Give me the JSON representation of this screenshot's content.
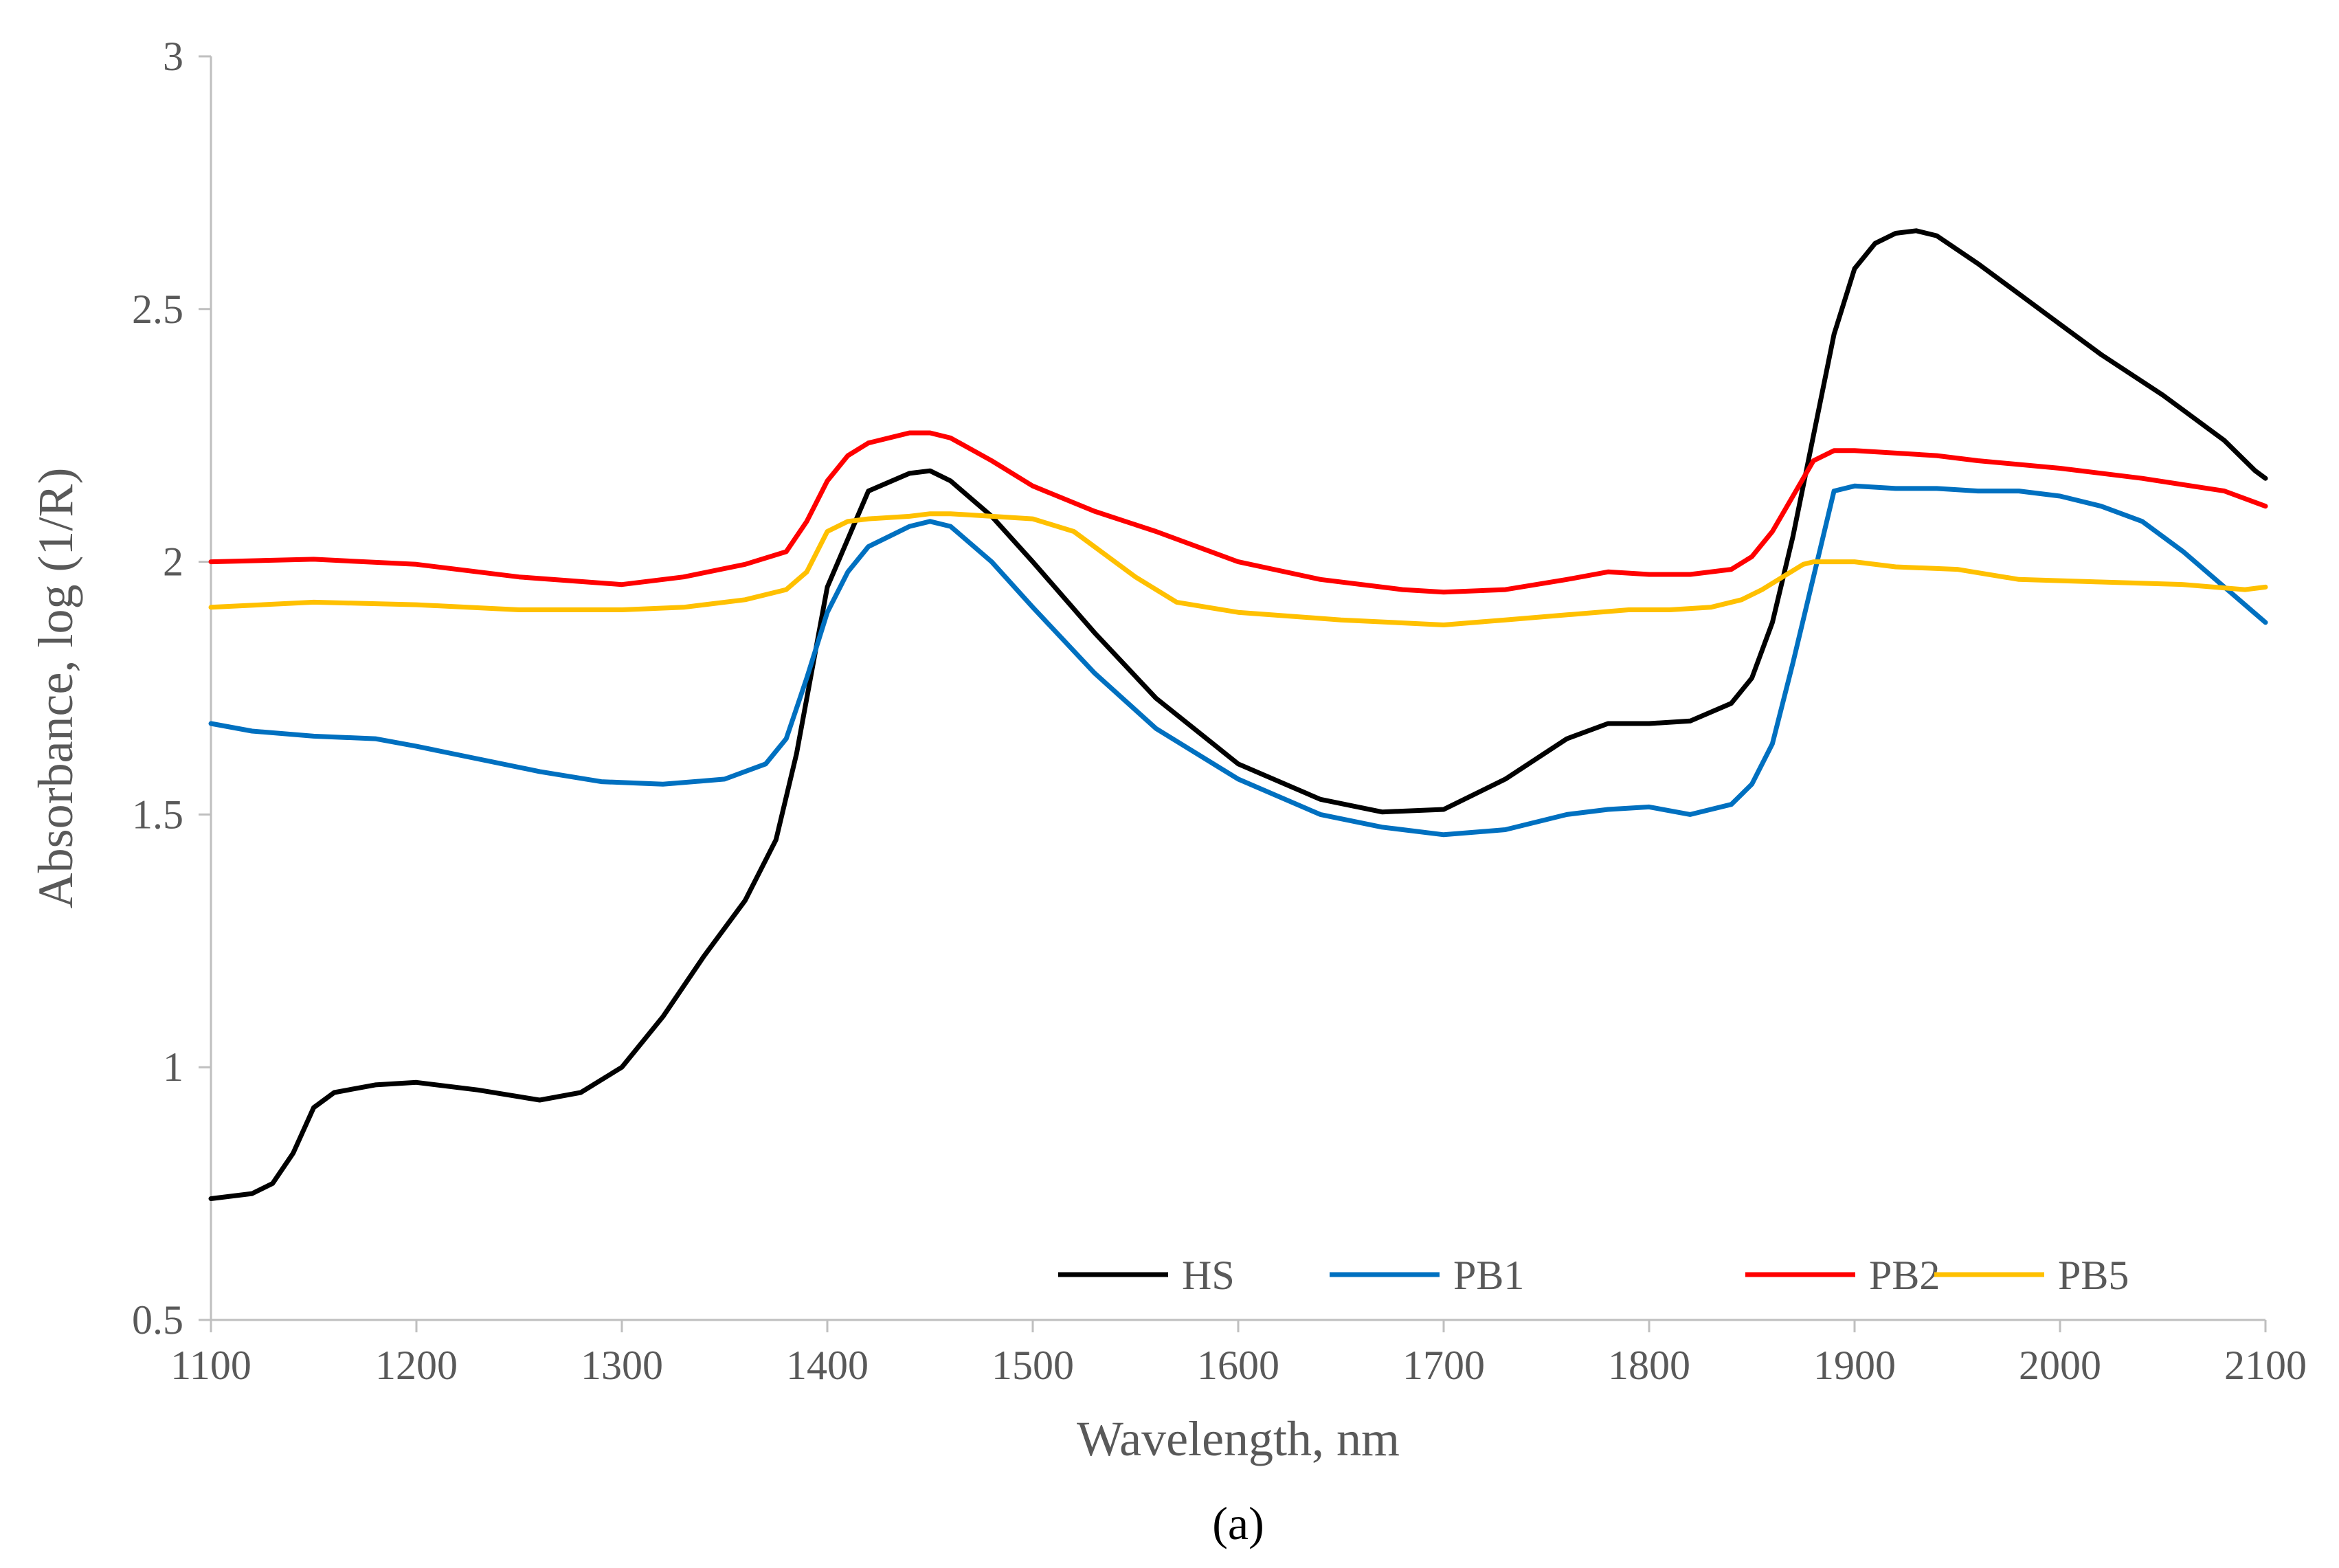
{
  "chart_data": {
    "type": "line",
    "xlabel": "Wavelength, nm",
    "ylabel": "Absorbance, log (1/R)",
    "caption": "(a)",
    "xlim": [
      1100,
      2100
    ],
    "ylim": [
      0.5,
      3
    ],
    "xticks": [
      1100,
      1200,
      1300,
      1400,
      1500,
      1600,
      1700,
      1800,
      1900,
      2000,
      2100
    ],
    "yticks": [
      0.5,
      1,
      1.5,
      2,
      2.5,
      3
    ],
    "ytick_labels": [
      "0.5",
      "1",
      "1.5",
      "2",
      "2.5",
      "3"
    ],
    "grid": false,
    "legend_position": "bottom-right",
    "series": [
      {
        "name": "HS",
        "color": "#000000",
        "x": [
          1100,
          1120,
          1130,
          1140,
          1150,
          1160,
          1180,
          1200,
          1230,
          1260,
          1280,
          1300,
          1320,
          1340,
          1360,
          1375,
          1385,
          1400,
          1420,
          1440,
          1450,
          1460,
          1480,
          1500,
          1530,
          1560,
          1600,
          1640,
          1670,
          1700,
          1730,
          1760,
          1780,
          1800,
          1820,
          1840,
          1850,
          1860,
          1870,
          1880,
          1890,
          1900,
          1910,
          1920,
          1930,
          1940,
          1960,
          1980,
          2000,
          2020,
          2050,
          2080,
          2095,
          2100
        ],
        "y": [
          0.74,
          0.75,
          0.77,
          0.83,
          0.92,
          0.95,
          0.965,
          0.97,
          0.955,
          0.935,
          0.95,
          1.0,
          1.1,
          1.22,
          1.33,
          1.45,
          1.62,
          1.95,
          2.14,
          2.175,
          2.18,
          2.16,
          2.09,
          2.0,
          1.86,
          1.73,
          1.6,
          1.53,
          1.505,
          1.51,
          1.57,
          1.65,
          1.68,
          1.68,
          1.685,
          1.72,
          1.77,
          1.88,
          2.05,
          2.25,
          2.45,
          2.58,
          2.63,
          2.65,
          2.655,
          2.645,
          2.59,
          2.53,
          2.47,
          2.41,
          2.33,
          2.24,
          2.18,
          2.165
        ]
      },
      {
        "name": "PB1",
        "color": "#0070C0",
        "x": [
          1100,
          1120,
          1150,
          1180,
          1200,
          1230,
          1260,
          1290,
          1320,
          1350,
          1370,
          1380,
          1390,
          1400,
          1410,
          1420,
          1440,
          1450,
          1460,
          1480,
          1500,
          1530,
          1560,
          1600,
          1640,
          1670,
          1700,
          1730,
          1760,
          1780,
          1800,
          1820,
          1840,
          1850,
          1860,
          1870,
          1880,
          1890,
          1900,
          1920,
          1940,
          1960,
          1980,
          2000,
          2020,
          2040,
          2060,
          2080,
          2100
        ],
        "y": [
          1.68,
          1.665,
          1.655,
          1.65,
          1.635,
          1.61,
          1.585,
          1.565,
          1.56,
          1.57,
          1.6,
          1.65,
          1.77,
          1.9,
          1.98,
          2.03,
          2.07,
          2.08,
          2.07,
          2.0,
          1.91,
          1.78,
          1.67,
          1.57,
          1.5,
          1.475,
          1.46,
          1.47,
          1.5,
          1.51,
          1.515,
          1.5,
          1.52,
          1.56,
          1.64,
          1.8,
          1.97,
          2.14,
          2.15,
          2.145,
          2.145,
          2.14,
          2.14,
          2.13,
          2.11,
          2.08,
          2.02,
          1.95,
          1.88
        ]
      },
      {
        "name": "PB2",
        "color": "#FF0000",
        "x": [
          1100,
          1150,
          1200,
          1250,
          1300,
          1330,
          1360,
          1380,
          1390,
          1400,
          1410,
          1420,
          1440,
          1450,
          1460,
          1480,
          1500,
          1530,
          1560,
          1600,
          1640,
          1680,
          1700,
          1730,
          1760,
          1780,
          1800,
          1820,
          1840,
          1850,
          1860,
          1870,
          1880,
          1890,
          1900,
          1920,
          1940,
          1960,
          2000,
          2040,
          2080,
          2100
        ],
        "y": [
          2.0,
          2.005,
          1.995,
          1.97,
          1.955,
          1.97,
          1.995,
          2.02,
          2.08,
          2.16,
          2.21,
          2.235,
          2.255,
          2.255,
          2.245,
          2.2,
          2.15,
          2.1,
          2.06,
          2.0,
          1.965,
          1.945,
          1.94,
          1.945,
          1.965,
          1.98,
          1.975,
          1.975,
          1.985,
          2.01,
          2.06,
          2.13,
          2.2,
          2.22,
          2.22,
          2.215,
          2.21,
          2.2,
          2.185,
          2.165,
          2.14,
          2.11
        ]
      },
      {
        "name": "PB5",
        "color": "#FFC000",
        "x": [
          1100,
          1150,
          1200,
          1250,
          1300,
          1330,
          1360,
          1380,
          1390,
          1400,
          1410,
          1420,
          1440,
          1450,
          1460,
          1480,
          1500,
          1520,
          1550,
          1570,
          1600,
          1650,
          1700,
          1730,
          1760,
          1790,
          1810,
          1830,
          1845,
          1855,
          1865,
          1875,
          1880,
          1900,
          1920,
          1950,
          1980,
          2020,
          2060,
          2090,
          2100
        ],
        "y": [
          1.91,
          1.92,
          1.915,
          1.905,
          1.905,
          1.91,
          1.925,
          1.945,
          1.98,
          2.06,
          2.08,
          2.085,
          2.09,
          2.095,
          2.095,
          2.09,
          2.085,
          2.06,
          1.97,
          1.92,
          1.9,
          1.885,
          1.875,
          1.885,
          1.895,
          1.905,
          1.905,
          1.91,
          1.925,
          1.945,
          1.97,
          1.995,
          2.0,
          2.0,
          1.99,
          1.985,
          1.965,
          1.96,
          1.955,
          1.945,
          1.95
        ]
      }
    ]
  }
}
